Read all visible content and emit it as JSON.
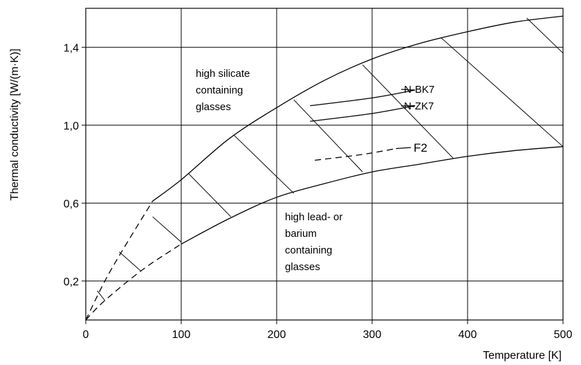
{
  "chart_data": {
    "type": "line",
    "title": "",
    "xlabel": "Temperature  [K]",
    "ylabel": "Thermal conductivity  [W/(m·K)]",
    "xlim": [
      0,
      500
    ],
    "ylim": [
      0,
      1.6
    ],
    "grid": true,
    "x_ticks": [
      0,
      100,
      200,
      300,
      400,
      500
    ],
    "x_tick_labels": [
      "0",
      "100",
      "200",
      "300",
      "400",
      "500"
    ],
    "y_ticks": [
      0.2,
      0.6,
      1.0,
      1.4
    ],
    "y_tick_labels": [
      "0,2",
      "0,6",
      "1,0",
      "1,4"
    ],
    "series": [
      {
        "style": "solid",
        "points": [
          [
            70,
            0.61
          ],
          [
            100,
            0.72
          ],
          [
            150,
            0.93
          ],
          [
            200,
            1.09
          ],
          [
            250,
            1.23
          ],
          [
            300,
            1.34
          ],
          [
            350,
            1.42
          ],
          [
            400,
            1.48
          ],
          [
            450,
            1.53
          ],
          [
            500,
            1.56
          ]
        ]
      },
      {
        "style": "dashed",
        "points": [
          [
            0,
            0.0
          ],
          [
            20,
            0.2
          ],
          [
            40,
            0.37
          ],
          [
            70,
            0.61
          ]
        ]
      },
      {
        "style": "solid",
        "points": [
          [
            100,
            0.39
          ],
          [
            150,
            0.52
          ],
          [
            200,
            0.63
          ],
          [
            250,
            0.7
          ],
          [
            300,
            0.76
          ],
          [
            350,
            0.8
          ],
          [
            400,
            0.84
          ],
          [
            450,
            0.87
          ],
          [
            500,
            0.89
          ]
        ]
      },
      {
        "style": "dashed",
        "points": [
          [
            0,
            0.0
          ],
          [
            20,
            0.1
          ],
          [
            60,
            0.26
          ],
          [
            100,
            0.39
          ]
        ]
      },
      {
        "name": "N-BK7",
        "style": "solid",
        "points": [
          [
            235,
            1.1
          ],
          [
            300,
            1.14
          ],
          [
            345,
            1.18
          ]
        ]
      },
      {
        "name": "N-ZK7",
        "style": "solid",
        "points": [
          [
            235,
            1.02
          ],
          [
            300,
            1.06
          ],
          [
            345,
            1.1
          ]
        ]
      },
      {
        "name": "F2",
        "style": "dashed",
        "points": [
          [
            240,
            0.82
          ],
          [
            290,
            0.85
          ],
          [
            325,
            0.88
          ]
        ]
      }
    ],
    "hatch_lines": [
      [
        [
          462,
          1.55
        ],
        [
          500,
          1.37
        ]
      ],
      [
        [
          372,
          1.45
        ],
        [
          500,
          0.89
        ]
      ],
      [
        [
          290,
          1.31
        ],
        [
          385,
          0.83
        ]
      ],
      [
        [
          218,
          1.13
        ],
        [
          290,
          0.76
        ]
      ],
      [
        [
          155,
          0.95
        ],
        [
          218,
          0.65
        ]
      ],
      [
        [
          108,
          0.75
        ],
        [
          152,
          0.53
        ]
      ],
      [
        [
          70,
          0.53
        ],
        [
          100,
          0.4
        ]
      ],
      [
        [
          35,
          0.35
        ],
        [
          58,
          0.25
        ]
      ],
      [
        [
          12,
          0.15
        ],
        [
          20,
          0.1
        ]
      ]
    ],
    "annotations": [
      {
        "lines": [
          "high silicate",
          "containing",
          "glasses"
        ]
      },
      {
        "lines": [
          "high lead- or",
          "barium",
          "containing",
          "glasses"
        ]
      },
      {
        "text": "N-BK7"
      },
      {
        "text": "N-ZK7"
      },
      {
        "text": "F2"
      }
    ]
  }
}
